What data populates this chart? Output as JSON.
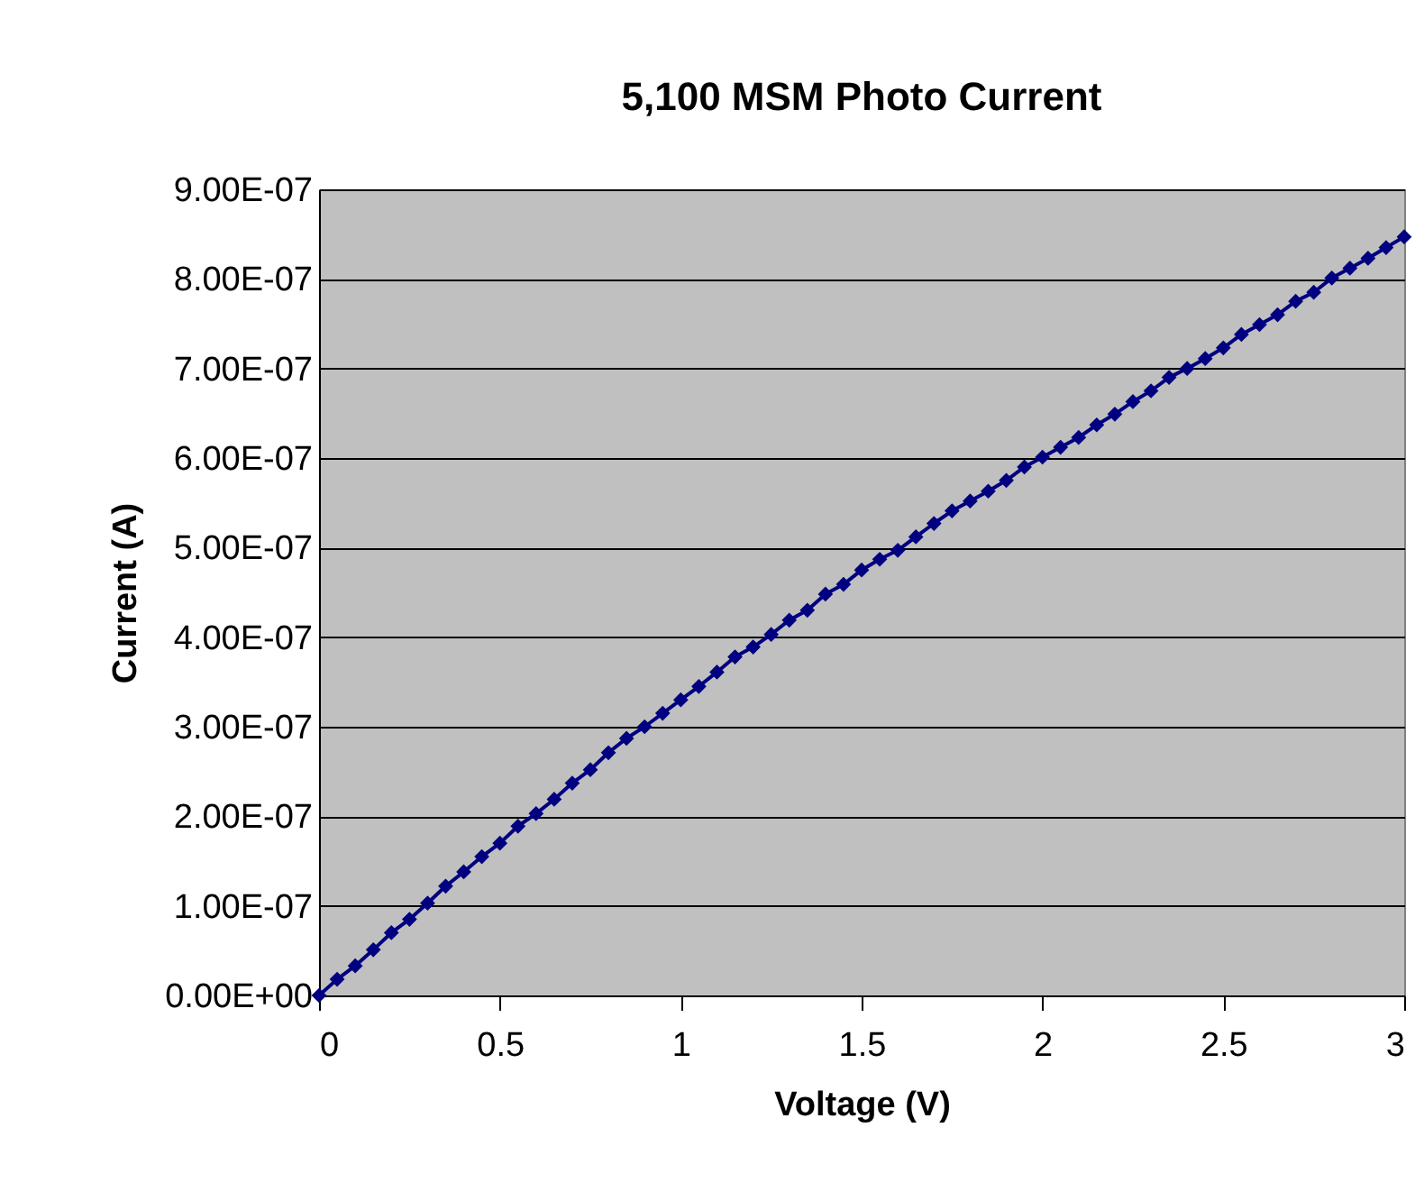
{
  "chart_data": {
    "type": "line",
    "title": "5,100 MSM Photo Current",
    "xlabel": "Voltage (V)",
    "ylabel": "Current (A)",
    "x": [
      0,
      0.05,
      0.1,
      0.15,
      0.2,
      0.25,
      0.3,
      0.35,
      0.4,
      0.45,
      0.5,
      0.55,
      0.6,
      0.65,
      0.7,
      0.75,
      0.8,
      0.85,
      0.9,
      0.95,
      1,
      1.05,
      1.1,
      1.15,
      1.2,
      1.25,
      1.3,
      1.35,
      1.4,
      1.45,
      1.5,
      1.55,
      1.6,
      1.65,
      1.7,
      1.75,
      1.8,
      1.85,
      1.9,
      1.95,
      2,
      2.05,
      2.1,
      2.15,
      2.2,
      2.25,
      2.3,
      2.35,
      2.4,
      2.45,
      2.5,
      2.55,
      2.6,
      2.65,
      2.7,
      2.75,
      2.8,
      2.85,
      2.9,
      2.95,
      3
    ],
    "series": [
      {
        "color": "#000080",
        "values": [
          0,
          1.8e-08,
          3.3e-08,
          5.1e-08,
          7e-08,
          8.5e-08,
          1.03e-07,
          1.22e-07,
          1.38e-07,
          1.55e-07,
          1.7e-07,
          1.89e-07,
          2.03e-07,
          2.19e-07,
          2.37e-07,
          2.52e-07,
          2.71e-07,
          2.87e-07,
          3e-07,
          3.15e-07,
          3.3e-07,
          3.45e-07,
          3.61e-07,
          3.78e-07,
          3.89e-07,
          4.03e-07,
          4.19e-07,
          4.3e-07,
          4.48e-07,
          4.59e-07,
          4.75e-07,
          4.87e-07,
          4.97e-07,
          5.12e-07,
          5.27e-07,
          5.41e-07,
          5.52e-07,
          5.63e-07,
          5.75e-07,
          5.9e-07,
          6.01e-07,
          6.12e-07,
          6.23e-07,
          6.37e-07,
          6.49e-07,
          6.63e-07,
          6.75e-07,
          6.9e-07,
          7e-07,
          7.11e-07,
          7.23e-07,
          7.38e-07,
          7.49e-07,
          7.6e-07,
          7.75e-07,
          7.85e-07,
          8.01e-07,
          8.12e-07,
          8.23e-07,
          8.35e-07,
          8.47e-07
        ]
      }
    ],
    "xlim": [
      0,
      3
    ],
    "xticks": [
      0,
      0.5,
      1,
      1.5,
      2,
      2.5,
      3
    ],
    "ylim": [
      0,
      9e-07
    ],
    "yticks": [
      {
        "value": 0,
        "label": "0.00E+00"
      },
      {
        "value": 1e-07,
        "label": "1.00E-07"
      },
      {
        "value": 2e-07,
        "label": "2.00E-07"
      },
      {
        "value": 3e-07,
        "label": "3.00E-07"
      },
      {
        "value": 4e-07,
        "label": "4.00E-07"
      },
      {
        "value": 5e-07,
        "label": "5.00E-07"
      },
      {
        "value": 6e-07,
        "label": "6.00E-07"
      },
      {
        "value": 7e-07,
        "label": "7.00E-07"
      },
      {
        "value": 8e-07,
        "label": "8.00E-07"
      },
      {
        "value": 9e-07,
        "label": "9.00E-07"
      }
    ],
    "grid": "y",
    "marker": "diamond",
    "line_style": "solid",
    "legend": false
  }
}
